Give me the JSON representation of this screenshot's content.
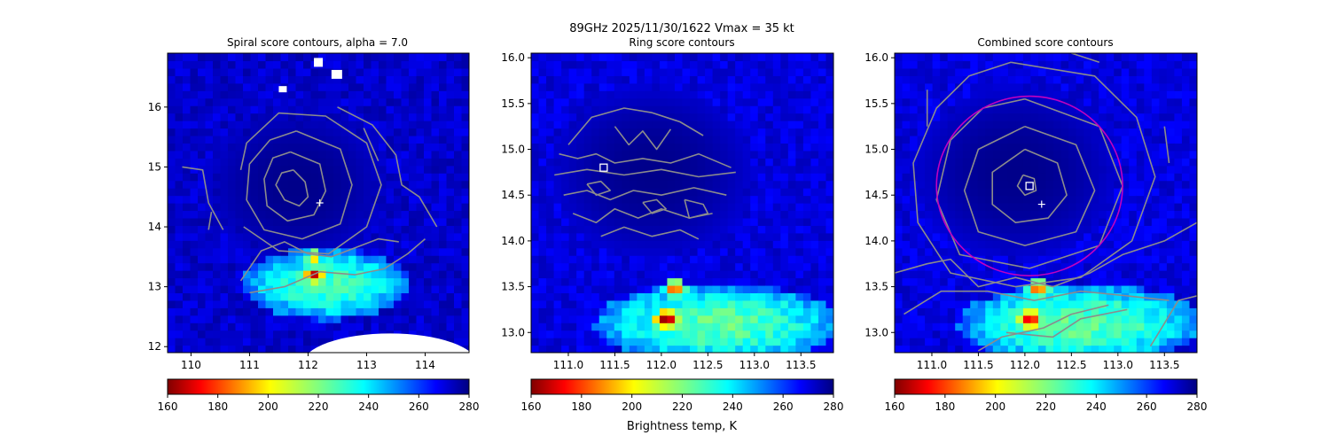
{
  "figure": {
    "suptitle_line1": "89GHz  2025/11/30/1622    Vmax = 35 kt",
    "colorbar_label": "Brightness temp, K"
  },
  "colormap": {
    "name": "jet_r",
    "vmin": 160,
    "vmax": 280,
    "ticks": [
      160,
      180,
      200,
      220,
      240,
      260,
      280
    ]
  },
  "colors": {
    "contour": "#8c8c8c",
    "ring_circle": "#c000c0",
    "marker": "#ffffff",
    "missing_data": "#ffffff"
  },
  "chart_data": [
    {
      "type": "heatmap",
      "title": "Spiral score contours, alpha =  7.0",
      "xlim": [
        109.6,
        114.75
      ],
      "ylim": [
        11.9,
        16.9
      ],
      "xticks": [
        110,
        111,
        112,
        113,
        114
      ],
      "yticks": [
        12,
        13,
        14,
        15,
        16
      ],
      "center_marker": {
        "symbol": "+",
        "x": 112.2,
        "y": 14.4
      },
      "background_Tb": 272,
      "warm_core": {
        "x": 111.8,
        "y": 14.7,
        "rx": 1.6,
        "ry": 1.35,
        "Tb": 279
      },
      "cold_region": [
        {
          "x": 112.3,
          "y": 13.05,
          "rx": 1.3,
          "ry": 0.55,
          "Tb": 228
        },
        {
          "x": 112.1,
          "y": 13.2,
          "rx": 0.18,
          "ry": 0.14,
          "Tb": 168
        },
        {
          "x": 112.1,
          "y": 13.5,
          "rx": 0.15,
          "ry": 0.12,
          "Tb": 190
        }
      ],
      "contours": [
        [
          [
            111.75,
            14.95
          ],
          [
            111.95,
            14.75
          ],
          [
            112.0,
            14.5
          ],
          [
            111.85,
            14.35
          ],
          [
            111.6,
            14.45
          ],
          [
            111.45,
            14.7
          ],
          [
            111.55,
            14.9
          ],
          [
            111.75,
            14.95
          ]
        ],
        [
          [
            111.7,
            15.25
          ],
          [
            112.2,
            15.05
          ],
          [
            112.3,
            14.6
          ],
          [
            112.1,
            14.2
          ],
          [
            111.65,
            14.1
          ],
          [
            111.3,
            14.35
          ],
          [
            111.25,
            14.8
          ],
          [
            111.4,
            15.15
          ],
          [
            111.7,
            15.25
          ]
        ],
        [
          [
            111.8,
            15.6
          ],
          [
            112.55,
            15.3
          ],
          [
            112.75,
            14.7
          ],
          [
            112.55,
            14.05
          ],
          [
            111.9,
            13.8
          ],
          [
            111.25,
            13.95
          ],
          [
            110.95,
            14.45
          ],
          [
            111.0,
            15.05
          ],
          [
            111.35,
            15.45
          ],
          [
            111.8,
            15.6
          ]
        ],
        [
          [
            110.85,
            14.95
          ],
          [
            110.95,
            15.4
          ],
          [
            111.5,
            15.9
          ],
          [
            112.3,
            15.85
          ],
          [
            113.0,
            15.4
          ],
          [
            113.25,
            14.7
          ],
          [
            113.0,
            14.0
          ],
          [
            112.35,
            13.55
          ],
          [
            111.5,
            13.6
          ],
          [
            110.9,
            14.0
          ]
        ],
        [
          [
            109.85,
            15.0
          ],
          [
            110.2,
            14.95
          ],
          [
            110.3,
            14.4
          ],
          [
            110.55,
            13.95
          ]
        ],
        [
          [
            112.5,
            16.0
          ],
          [
            113.1,
            15.7
          ],
          [
            113.5,
            15.2
          ],
          [
            113.6,
            14.7
          ],
          [
            113.9,
            14.5
          ],
          [
            114.2,
            14.0
          ]
        ],
        [
          [
            112.95,
            15.65
          ],
          [
            113.2,
            15.1
          ]
        ],
        [
          [
            110.85,
            13.1
          ],
          [
            111.2,
            13.6
          ],
          [
            111.6,
            13.75
          ],
          [
            112.0,
            13.55
          ],
          [
            112.4,
            13.5
          ],
          [
            112.8,
            13.65
          ],
          [
            113.2,
            13.8
          ],
          [
            113.55,
            13.75
          ]
        ],
        [
          [
            111.0,
            12.9
          ],
          [
            111.6,
            13.0
          ],
          [
            112.2,
            13.25
          ],
          [
            112.8,
            13.2
          ],
          [
            113.3,
            13.3
          ],
          [
            113.7,
            13.55
          ],
          [
            114.0,
            13.8
          ]
        ],
        [
          [
            110.35,
            14.25
          ],
          [
            110.3,
            13.95
          ]
        ]
      ]
    },
    {
      "type": "heatmap",
      "title": "Ring score contours",
      "xlim": [
        110.6,
        113.85
      ],
      "ylim": [
        12.78,
        16.05
      ],
      "xticks": [
        111.0,
        111.5,
        112.0,
        112.5,
        113.0,
        113.5
      ],
      "yticks": [
        13.0,
        13.5,
        14.0,
        14.5,
        15.0,
        15.5,
        16.0
      ],
      "center_marker": {
        "symbol": "square",
        "x": 111.38,
        "y": 14.8
      },
      "background_Tb": 270,
      "warm_core": {
        "x": 111.9,
        "y": 14.75,
        "rx": 1.1,
        "ry": 0.95,
        "Tb": 279
      },
      "cold_region": [
        {
          "x": 112.6,
          "y": 13.1,
          "rx": 1.2,
          "ry": 0.4,
          "Tb": 225
        },
        {
          "x": 112.05,
          "y": 13.15,
          "rx": 0.14,
          "ry": 0.11,
          "Tb": 168
        },
        {
          "x": 112.15,
          "y": 13.48,
          "rx": 0.12,
          "ry": 0.09,
          "Tb": 185
        }
      ],
      "contours": [
        [
          [
            111.0,
            15.05
          ],
          [
            111.25,
            15.35
          ],
          [
            111.6,
            15.45
          ],
          [
            111.9,
            15.4
          ],
          [
            112.2,
            15.3
          ],
          [
            112.45,
            15.15
          ]
        ],
        [
          [
            110.9,
            14.95
          ],
          [
            111.1,
            14.9
          ],
          [
            111.3,
            14.95
          ],
          [
            111.5,
            14.85
          ],
          [
            111.8,
            14.9
          ],
          [
            112.1,
            14.85
          ],
          [
            112.4,
            14.95
          ],
          [
            112.75,
            14.8
          ]
        ],
        [
          [
            110.85,
            14.72
          ],
          [
            111.2,
            14.78
          ],
          [
            111.6,
            14.72
          ],
          [
            112.0,
            14.78
          ],
          [
            112.4,
            14.7
          ],
          [
            112.8,
            14.75
          ]
        ],
        [
          [
            110.95,
            14.5
          ],
          [
            111.2,
            14.55
          ],
          [
            111.45,
            14.45
          ],
          [
            111.7,
            14.55
          ],
          [
            112.0,
            14.5
          ],
          [
            112.35,
            14.58
          ],
          [
            112.7,
            14.5
          ]
        ],
        [
          [
            111.05,
            14.3
          ],
          [
            111.3,
            14.2
          ],
          [
            111.5,
            14.35
          ],
          [
            111.75,
            14.25
          ],
          [
            112.0,
            14.35
          ],
          [
            112.3,
            14.25
          ],
          [
            112.55,
            14.3
          ]
        ],
        [
          [
            111.35,
            14.05
          ],
          [
            111.6,
            14.15
          ],
          [
            111.9,
            14.05
          ],
          [
            112.2,
            14.12
          ],
          [
            112.4,
            14.02
          ]
        ],
        [
          [
            111.5,
            15.25
          ],
          [
            111.65,
            15.05
          ],
          [
            111.8,
            15.2
          ],
          [
            111.95,
            15.0
          ],
          [
            112.1,
            15.22
          ]
        ],
        [
          [
            112.25,
            14.45
          ],
          [
            112.45,
            14.4
          ],
          [
            112.5,
            14.3
          ],
          [
            112.3,
            14.25
          ],
          [
            112.25,
            14.45
          ]
        ],
        [
          [
            111.2,
            14.62
          ],
          [
            111.35,
            14.65
          ],
          [
            111.45,
            14.55
          ],
          [
            111.3,
            14.5
          ],
          [
            111.2,
            14.62
          ]
        ],
        [
          [
            111.8,
            14.42
          ],
          [
            111.95,
            14.45
          ],
          [
            112.05,
            14.35
          ],
          [
            111.9,
            14.3
          ],
          [
            111.8,
            14.42
          ]
        ]
      ]
    },
    {
      "type": "heatmap",
      "title": "Combined score contours",
      "xlim": [
        110.6,
        113.85
      ],
      "ylim": [
        12.78,
        16.05
      ],
      "xticks": [
        111.0,
        111.5,
        112.0,
        112.5,
        113.0,
        113.5
      ],
      "yticks": [
        13.0,
        13.5,
        14.0,
        14.5,
        15.0,
        15.5,
        16.0
      ],
      "center_marker": {
        "symbol": "+",
        "x": 112.18,
        "y": 14.4
      },
      "peak_marker": {
        "symbol": "square",
        "x": 112.05,
        "y": 14.6
      },
      "ring": {
        "x": 112.05,
        "y": 14.6,
        "r_x": 1.0,
        "r_y": 0.98
      },
      "background_Tb": 270,
      "warm_core": {
        "x": 111.9,
        "y": 14.75,
        "rx": 1.1,
        "ry": 0.95,
        "Tb": 279
      },
      "cold_region": [
        {
          "x": 112.6,
          "y": 13.1,
          "rx": 1.2,
          "ry": 0.4,
          "Tb": 225
        },
        {
          "x": 112.05,
          "y": 13.15,
          "rx": 0.14,
          "ry": 0.11,
          "Tb": 168
        },
        {
          "x": 112.15,
          "y": 13.48,
          "rx": 0.12,
          "ry": 0.09,
          "Tb": 185
        }
      ],
      "contours": [
        [
          [
            111.98,
            14.72
          ],
          [
            112.1,
            14.68
          ],
          [
            112.12,
            14.55
          ],
          [
            112.0,
            14.5
          ],
          [
            111.92,
            14.6
          ],
          [
            111.98,
            14.72
          ]
        ],
        [
          [
            112.0,
            15.0
          ],
          [
            112.35,
            14.85
          ],
          [
            112.45,
            14.5
          ],
          [
            112.25,
            14.25
          ],
          [
            111.9,
            14.2
          ],
          [
            111.65,
            14.4
          ],
          [
            111.65,
            14.75
          ],
          [
            112.0,
            15.0
          ]
        ],
        [
          [
            112.0,
            15.25
          ],
          [
            112.55,
            15.05
          ],
          [
            112.75,
            14.55
          ],
          [
            112.55,
            14.1
          ],
          [
            112.0,
            13.95
          ],
          [
            111.5,
            14.1
          ],
          [
            111.35,
            14.55
          ],
          [
            111.5,
            15.0
          ],
          [
            112.0,
            15.25
          ]
        ],
        [
          [
            112.0,
            15.55
          ],
          [
            112.8,
            15.25
          ],
          [
            113.05,
            14.6
          ],
          [
            112.8,
            13.95
          ],
          [
            112.05,
            13.7
          ],
          [
            111.3,
            13.85
          ],
          [
            111.05,
            14.45
          ],
          [
            111.2,
            15.1
          ],
          [
            111.55,
            15.45
          ],
          [
            112.0,
            15.55
          ]
        ],
        [
          [
            111.85,
            15.95
          ],
          [
            112.75,
            15.8
          ],
          [
            113.2,
            15.35
          ],
          [
            113.4,
            14.7
          ],
          [
            113.15,
            14.0
          ],
          [
            112.6,
            13.6
          ],
          [
            111.9,
            13.5
          ],
          [
            111.2,
            13.65
          ],
          [
            110.85,
            14.2
          ],
          [
            110.8,
            14.85
          ],
          [
            111.05,
            15.45
          ],
          [
            111.4,
            15.8
          ],
          [
            111.85,
            15.95
          ]
        ],
        [
          [
            110.6,
            13.65
          ],
          [
            110.95,
            13.75
          ],
          [
            111.2,
            13.8
          ],
          [
            111.5,
            13.5
          ],
          [
            111.9,
            13.6
          ],
          [
            112.3,
            13.5
          ],
          [
            112.7,
            13.65
          ],
          [
            113.05,
            13.85
          ],
          [
            113.5,
            14.0
          ],
          [
            113.85,
            14.2
          ]
        ],
        [
          [
            110.7,
            13.2
          ],
          [
            111.1,
            13.45
          ],
          [
            111.6,
            13.45
          ],
          [
            112.1,
            13.35
          ],
          [
            112.6,
            13.45
          ],
          [
            113.1,
            13.4
          ],
          [
            113.55,
            13.35
          ]
        ],
        [
          [
            111.5,
            12.8
          ],
          [
            111.75,
            12.95
          ],
          [
            112.2,
            13.05
          ],
          [
            112.5,
            13.2
          ],
          [
            112.9,
            13.3
          ]
        ],
        [
          [
            111.8,
            13.0
          ],
          [
            112.3,
            12.95
          ],
          [
            112.6,
            13.15
          ],
          [
            113.1,
            13.25
          ]
        ],
        [
          [
            113.35,
            12.85
          ],
          [
            113.5,
            13.1
          ],
          [
            113.65,
            13.35
          ],
          [
            113.85,
            13.4
          ]
        ],
        [
          [
            110.95,
            15.65
          ],
          [
            110.95,
            15.25
          ]
        ],
        [
          [
            113.5,
            15.25
          ],
          [
            113.55,
            14.85
          ]
        ],
        [
          [
            112.5,
            16.05
          ],
          [
            112.8,
            15.95
          ]
        ]
      ]
    }
  ]
}
